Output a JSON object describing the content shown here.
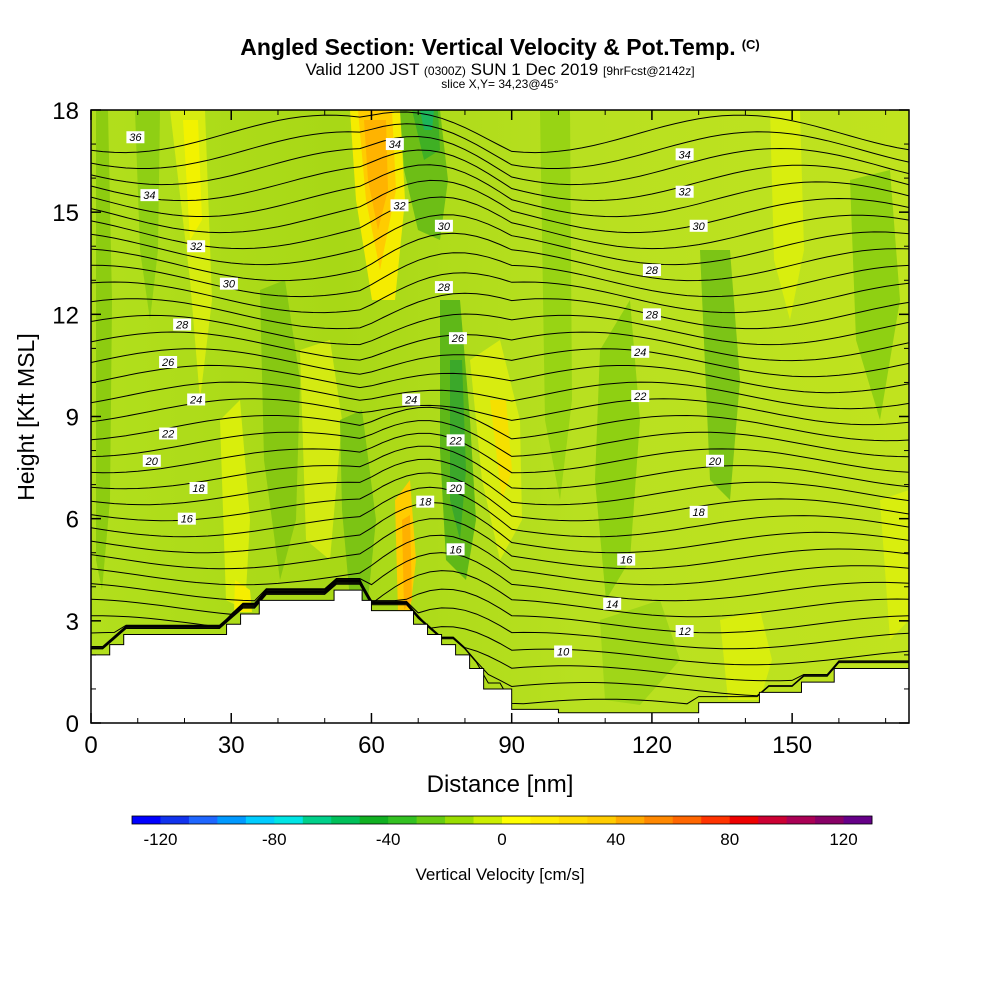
{
  "chart_data": {
    "type": "heatmap",
    "title": "Angled Section: Vertical Velocity & Pot.Temp.",
    "title_mark": "(C)",
    "subtitle_parts": [
      "Valid 1200 JST",
      "(0300Z)",
      "SUN 1 Dec 2019",
      "[9hrFcst@2142z]"
    ],
    "slice_label": "slice X,Y= 34,23@45°",
    "xlabel": "Distance [nm]",
    "ylabel": "Height [Kft MSL]",
    "xlim": [
      0,
      175
    ],
    "ylim": [
      0,
      18
    ],
    "xticks": [
      0,
      30,
      60,
      90,
      120,
      150
    ],
    "yticks": [
      0,
      3,
      6,
      9,
      12,
      15,
      18
    ],
    "colorbar": {
      "label": "Vertical Velocity [cm/s]",
      "min": -130,
      "step": 10,
      "tick_values": [
        -120,
        -80,
        -40,
        0,
        40,
        80,
        120
      ],
      "tick_labels": [
        "-120",
        "-80",
        "-40",
        "0",
        "40",
        "80",
        "120"
      ],
      "colors": [
        "#0000ff",
        "#1133ee",
        "#1f66ff",
        "#0099ff",
        "#00ccff",
        "#00e5e5",
        "#00d08a",
        "#00c05a",
        "#11b022",
        "#33c122",
        "#66cc11",
        "#99dd00",
        "#ccee00",
        "#ffff00",
        "#ffee00",
        "#ffdd00",
        "#ffcc00",
        "#ffaa00",
        "#ff8800",
        "#ff6600",
        "#ff3300",
        "#ee0000",
        "#cc0033",
        "#aa0055",
        "#880066",
        "#660088"
      ]
    },
    "terrain_kft": [
      [
        0,
        2.0
      ],
      [
        4,
        2.0
      ],
      [
        4,
        2.3
      ],
      [
        7,
        2.3
      ],
      [
        7,
        2.6
      ],
      [
        29,
        2.6
      ],
      [
        29,
        2.9
      ],
      [
        32,
        2.9
      ],
      [
        32,
        3.2
      ],
      [
        36,
        3.2
      ],
      [
        36,
        3.6
      ],
      [
        52,
        3.6
      ],
      [
        52,
        3.9
      ],
      [
        58,
        3.9
      ],
      [
        58,
        3.6
      ],
      [
        60,
        3.6
      ],
      [
        60,
        3.3
      ],
      [
        69,
        3.3
      ],
      [
        69,
        2.9
      ],
      [
        72,
        2.9
      ],
      [
        72,
        2.6
      ],
      [
        75,
        2.6
      ],
      [
        75,
        2.3
      ],
      [
        78,
        2.3
      ],
      [
        78,
        2.0
      ],
      [
        81,
        2.0
      ],
      [
        81,
        1.6
      ],
      [
        84,
        1.6
      ],
      [
        84,
        1.0
      ],
      [
        90,
        1.0
      ],
      [
        90,
        0.4
      ],
      [
        100,
        0.4
      ],
      [
        100,
        0.3
      ],
      [
        130,
        0.3
      ],
      [
        130,
        0.6
      ],
      [
        143,
        0.6
      ],
      [
        143,
        0.9
      ],
      [
        152,
        0.9
      ],
      [
        152,
        1.2
      ],
      [
        159,
        1.2
      ],
      [
        159,
        1.6
      ],
      [
        175,
        1.6
      ]
    ],
    "contour_labels": [
      {
        "text": "36",
        "x": 9.5,
        "y": 17.2
      },
      {
        "text": "34",
        "x": 12.5,
        "y": 15.5
      },
      {
        "text": "32",
        "x": 22.5,
        "y": 14.0
      },
      {
        "text": "30",
        "x": 29.5,
        "y": 12.9
      },
      {
        "text": "28",
        "x": 19.5,
        "y": 11.7
      },
      {
        "text": "26",
        "x": 16.5,
        "y": 10.6
      },
      {
        "text": "24",
        "x": 22.5,
        "y": 9.5
      },
      {
        "text": "22",
        "x": 16.5,
        "y": 8.5
      },
      {
        "text": "20",
        "x": 13.0,
        "y": 7.7
      },
      {
        "text": "18",
        "x": 23.0,
        "y": 6.9
      },
      {
        "text": "16",
        "x": 20.5,
        "y": 6.0
      },
      {
        "text": "34",
        "x": 65.0,
        "y": 17.0
      },
      {
        "text": "32",
        "x": 66.0,
        "y": 15.2
      },
      {
        "text": "30",
        "x": 75.5,
        "y": 14.6
      },
      {
        "text": "28",
        "x": 75.5,
        "y": 12.8
      },
      {
        "text": "26",
        "x": 78.5,
        "y": 11.3
      },
      {
        "text": "24",
        "x": 68.5,
        "y": 9.5
      },
      {
        "text": "22",
        "x": 78.0,
        "y": 8.3
      },
      {
        "text": "20",
        "x": 78.0,
        "y": 6.9
      },
      {
        "text": "18",
        "x": 71.5,
        "y": 6.5
      },
      {
        "text": "16",
        "x": 78.0,
        "y": 5.1
      },
      {
        "text": "34",
        "x": 127.0,
        "y": 16.7
      },
      {
        "text": "32",
        "x": 127.0,
        "y": 15.6
      },
      {
        "text": "30",
        "x": 130.0,
        "y": 14.6
      },
      {
        "text": "28",
        "x": 120.0,
        "y": 13.3
      },
      {
        "text": "28",
        "x": 120.0,
        "y": 12.0
      },
      {
        "text": "24",
        "x": 117.5,
        "y": 10.9
      },
      {
        "text": "22",
        "x": 117.5,
        "y": 9.6
      },
      {
        "text": "20",
        "x": 133.5,
        "y": 7.7
      },
      {
        "text": "18",
        "x": 130.0,
        "y": 6.2
      },
      {
        "text": "16",
        "x": 114.5,
        "y": 4.8
      },
      {
        "text": "14",
        "x": 111.5,
        "y": 3.5
      },
      {
        "text": "12",
        "x": 127.0,
        "y": 2.7
      },
      {
        "text": "10",
        "x": 101.0,
        "y": 2.1
      }
    ]
  }
}
